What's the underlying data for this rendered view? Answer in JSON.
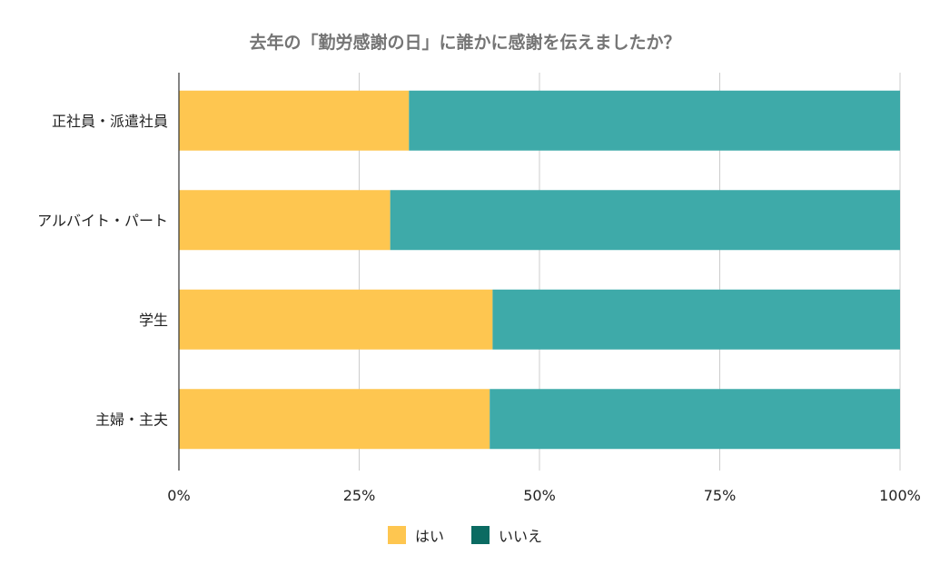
{
  "chart_data": {
    "type": "bar",
    "orientation": "horizontal",
    "stacked": "percent",
    "title": "去年の「勤労感謝の日」に誰かに感謝を伝えましたか？",
    "categories": [
      "正社員・派遣社員",
      "アルバイト・パート",
      "学生",
      "主婦・主夫"
    ],
    "series": [
      {
        "name": "はい",
        "values": [
          31.9,
          29.3,
          43.5,
          43.1
        ],
        "color": "#fec650"
      },
      {
        "name": "いいえ",
        "values": [
          68.1,
          70.7,
          56.5,
          56.9
        ],
        "color": "#3eaaa9"
      }
    ],
    "legend_colors": [
      "#fec650",
      "#0b6b62"
    ],
    "xlim": [
      0,
      100
    ],
    "x_ticks": [
      "0%",
      "25%",
      "50%",
      "75%",
      "100%"
    ],
    "grid": true,
    "legend": "bottom"
  }
}
